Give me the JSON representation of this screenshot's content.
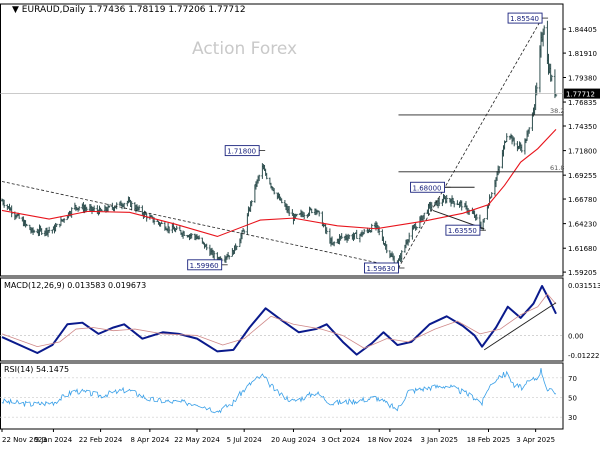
{
  "header": {
    "title": "EURAUD,Daily",
    "ohlc": "1.77436 1.78119 1.77206 1.77712"
  },
  "watermark": "Action Forex",
  "colors": {
    "bars": "#2f4f4f",
    "ma": "#e8141c",
    "macd_line": "#0a1a8c",
    "macd_signal": "#d08a8a",
    "rsi": "#3aa0e8",
    "label_border": "#1a237e",
    "current_price_bg": "#000000"
  },
  "chart_data": [
    {
      "type": "ohlc",
      "panel": "price",
      "title": "EURAUD,Daily",
      "ylim": [
        1.588,
        1.87
      ],
      "y_ticks": [
        "1.84405",
        "1.81910",
        "1.79380",
        "1.76835",
        "1.74350",
        "1.71800",
        "1.69255",
        "1.66780",
        "1.64230",
        "1.61680",
        "1.59205"
      ],
      "x_ticks": [
        "22 Nov 2023",
        "9 Jan 2024",
        "22 Feb 2024",
        "8 Apr 2024",
        "22 May 2024",
        "5 Jul 2024",
        "20 Aug 2024",
        "3 Oct 2024",
        "18 Nov 2024",
        "3 Jan 2025",
        "18 Feb 2025",
        "3 Apr 2025"
      ],
      "x_range": [
        "2023-11-22",
        "2025-04-22"
      ],
      "anchors": [
        [
          "2023-11-22",
          1.666
        ],
        [
          "2023-12-20",
          1.634
        ],
        [
          "2024-01-09",
          1.636
        ],
        [
          "2024-01-29",
          1.66
        ],
        [
          "2024-02-22",
          1.655
        ],
        [
          "2024-03-18",
          1.665
        ],
        [
          "2024-04-08",
          1.648
        ],
        [
          "2024-04-25",
          1.638
        ],
        [
          "2024-05-22",
          1.628
        ],
        [
          "2024-06-10",
          1.605
        ],
        [
          "2024-06-24",
          1.612
        ],
        [
          "2024-07-05",
          1.636
        ],
        [
          "2024-07-15",
          1.68
        ],
        [
          "2024-07-22",
          1.7
        ],
        [
          "2024-08-05",
          1.67
        ],
        [
          "2024-08-20",
          1.648
        ],
        [
          "2024-09-10",
          1.658
        ],
        [
          "2024-09-25",
          1.62
        ],
        [
          "2024-10-03",
          1.628
        ],
        [
          "2024-10-20",
          1.63
        ],
        [
          "2024-11-05",
          1.64
        ],
        [
          "2024-11-18",
          1.61
        ],
        [
          "2024-11-25",
          1.6
        ],
        [
          "2024-12-05",
          1.628
        ],
        [
          "2024-12-25",
          1.66
        ],
        [
          "2025-01-10",
          1.668
        ],
        [
          "2025-01-24",
          1.662
        ],
        [
          "2025-02-05",
          1.65
        ],
        [
          "2025-02-12",
          1.638
        ],
        [
          "2025-02-18",
          1.665
        ],
        [
          "2025-02-28",
          1.7
        ],
        [
          "2025-03-08",
          1.74
        ],
        [
          "2025-03-14",
          1.725
        ],
        [
          "2025-03-22",
          1.72
        ],
        [
          "2025-03-28",
          1.74
        ],
        [
          "2025-04-04",
          1.78
        ],
        [
          "2025-04-08",
          1.83
        ],
        [
          "2025-04-11",
          1.85
        ],
        [
          "2025-04-14",
          1.81
        ],
        [
          "2025-04-18",
          1.79
        ],
        [
          "2025-04-22",
          1.777
        ]
      ],
      "moving_average": [
        [
          "2023-11-22",
          1.656
        ],
        [
          "2024-01-05",
          1.647
        ],
        [
          "2024-02-10",
          1.655
        ],
        [
          "2024-03-20",
          1.654
        ],
        [
          "2024-05-01",
          1.642
        ],
        [
          "2024-06-10",
          1.629
        ],
        [
          "2024-07-20",
          1.646
        ],
        [
          "2024-08-20",
          1.648
        ],
        [
          "2024-09-30",
          1.64
        ],
        [
          "2024-11-05",
          1.637
        ],
        [
          "2024-12-20",
          1.645
        ],
        [
          "2025-01-25",
          1.653
        ],
        [
          "2025-02-18",
          1.662
        ],
        [
          "2025-03-05",
          1.682
        ],
        [
          "2025-03-20",
          1.706
        ],
        [
          "2025-04-05",
          1.72
        ],
        [
          "2025-04-22",
          1.74
        ]
      ],
      "annotations": [
        {
          "label": "1.85540",
          "date": "2025-04-09",
          "price": 1.8554,
          "side": "left"
        },
        {
          "label": "1.71800",
          "date": "2024-07-19",
          "price": 1.718,
          "side": "left"
        },
        {
          "label": "1.68000",
          "date": "2025-01-08",
          "price": 1.68,
          "side": "left"
        },
        {
          "label": "1.63550",
          "date": "2025-02-10",
          "price": 1.6355,
          "side": "left"
        },
        {
          "label": "1.59960",
          "date": "2024-06-14",
          "price": 1.5996,
          "side": "left"
        },
        {
          "label": "1.59630",
          "date": "2024-11-26",
          "price": 1.5963,
          "side": "left"
        }
      ],
      "horizontal_levels": [
        {
          "price": 1.755,
          "from": "2024-11-26",
          "label": "38.2"
        },
        {
          "price": 1.696,
          "from": "2024-11-26",
          "label": "61.8"
        },
        {
          "price": 1.68,
          "from": "2024-12-20",
          "to": "2025-02-05",
          "label": ""
        }
      ],
      "trendlines": [
        {
          "from": [
            "2023-11-22",
            1.686
          ],
          "to": [
            "2024-11-26",
            1.597
          ],
          "style": "dashed"
        },
        {
          "from": [
            "2024-11-26",
            1.5963
          ],
          "to": [
            "2025-04-09",
            1.8554
          ],
          "style": "dashed"
        },
        {
          "from": [
            "2024-12-28",
            1.656
          ],
          "to": [
            "2025-02-14",
            1.637
          ],
          "style": "solid"
        }
      ],
      "current_price": 1.77712
    },
    {
      "type": "line",
      "panel": "macd",
      "title": "MACD(12,26,9) 0.013583 0.019673",
      "ylim": [
        -0.016,
        0.036
      ],
      "y_ticks": [
        {
          "label": "0.031513",
          "value": 0.031513
        },
        {
          "label": "0.00",
          "value": 0.0
        },
        {
          "label": "-0.012223",
          "value": -0.012223
        }
      ],
      "series": [
        {
          "name": "MACD",
          "points": [
            [
              "2023-11-22",
              -0.001
            ],
            [
              "2023-12-25",
              -0.011
            ],
            [
              "2024-01-08",
              -0.006
            ],
            [
              "2024-01-22",
              0.007
            ],
            [
              "2024-02-05",
              0.008
            ],
            [
              "2024-02-20",
              0.001
            ],
            [
              "2024-03-05",
              0.005
            ],
            [
              "2024-03-15",
              0.007
            ],
            [
              "2024-04-01",
              -0.002
            ],
            [
              "2024-04-20",
              0.002
            ],
            [
              "2024-05-05",
              0.001
            ],
            [
              "2024-05-22",
              -0.002
            ],
            [
              "2024-06-10",
              -0.01
            ],
            [
              "2024-06-25",
              -0.009
            ],
            [
              "2024-07-10",
              0.005
            ],
            [
              "2024-07-25",
              0.017
            ],
            [
              "2024-08-10",
              0.009
            ],
            [
              "2024-08-25",
              0.002
            ],
            [
              "2024-09-10",
              0.004
            ],
            [
              "2024-09-20",
              0.007
            ],
            [
              "2024-10-05",
              -0.004
            ],
            [
              "2024-10-18",
              -0.012
            ],
            [
              "2024-11-01",
              -0.005
            ],
            [
              "2024-11-12",
              0.002
            ],
            [
              "2024-11-25",
              -0.006
            ],
            [
              "2024-12-08",
              -0.004
            ],
            [
              "2024-12-25",
              0.007
            ],
            [
              "2025-01-10",
              0.012
            ],
            [
              "2025-01-25",
              0.006
            ],
            [
              "2025-02-05",
              0.0
            ],
            [
              "2025-02-12",
              -0.007
            ],
            [
              "2025-02-25",
              0.005
            ],
            [
              "2025-03-08",
              0.018
            ],
            [
              "2025-03-20",
              0.011
            ],
            [
              "2025-04-01",
              0.02
            ],
            [
              "2025-04-09",
              0.031
            ],
            [
              "2025-04-16",
              0.022
            ],
            [
              "2025-04-22",
              0.0136
            ]
          ]
        },
        {
          "name": "Signal",
          "points": [
            [
              "2023-11-22",
              0.001
            ],
            [
              "2023-12-25",
              -0.007
            ],
            [
              "2024-01-15",
              -0.004
            ],
            [
              "2024-01-30",
              0.004
            ],
            [
              "2024-02-15",
              0.005
            ],
            [
              "2024-03-05",
              0.003
            ],
            [
              "2024-03-25",
              0.004
            ],
            [
              "2024-04-20",
              0.001
            ],
            [
              "2024-05-22",
              0.0
            ],
            [
              "2024-06-15",
              -0.006
            ],
            [
              "2024-07-05",
              -0.002
            ],
            [
              "2024-07-30",
              0.012
            ],
            [
              "2024-08-20",
              0.007
            ],
            [
              "2024-09-15",
              0.004
            ],
            [
              "2024-10-05",
              0.0
            ],
            [
              "2024-10-25",
              -0.008
            ],
            [
              "2024-11-15",
              -0.002
            ],
            [
              "2024-12-05",
              -0.004
            ],
            [
              "2024-12-30",
              0.004
            ],
            [
              "2025-01-20",
              0.009
            ],
            [
              "2025-02-10",
              0.001
            ],
            [
              "2025-03-01",
              0.004
            ],
            [
              "2025-03-20",
              0.013
            ],
            [
              "2025-04-05",
              0.018
            ],
            [
              "2025-04-14",
              0.026
            ],
            [
              "2025-04-22",
              0.0197
            ]
          ]
        }
      ],
      "trendlines": [
        {
          "from": [
            "2025-02-14",
            -0.009
          ],
          "to": [
            "2025-04-22",
            0.0205
          ],
          "style": "solid"
        }
      ]
    },
    {
      "type": "line",
      "panel": "rsi",
      "title": "RSI(14) 54.1475",
      "ylim": [
        18,
        85
      ],
      "y_ticks": [
        {
          "label": "70",
          "value": 70
        },
        {
          "label": "50",
          "value": 50
        },
        {
          "label": "30",
          "value": 30
        }
      ],
      "series": [
        {
          "name": "RSI",
          "points": [
            [
              "2023-11-22",
              46
            ],
            [
              "2023-12-20",
              43
            ],
            [
              "2024-01-09",
              45
            ],
            [
              "2024-01-29",
              57
            ],
            [
              "2024-02-22",
              52
            ],
            [
              "2024-03-18",
              58
            ],
            [
              "2024-04-08",
              48
            ],
            [
              "2024-04-25",
              46
            ],
            [
              "2024-05-22",
              44
            ],
            [
              "2024-06-10",
              36
            ],
            [
              "2024-06-24",
              44
            ],
            [
              "2024-07-05",
              58
            ],
            [
              "2024-07-15",
              68
            ],
            [
              "2024-07-22",
              72
            ],
            [
              "2024-08-05",
              55
            ],
            [
              "2024-08-20",
              46
            ],
            [
              "2024-09-10",
              55
            ],
            [
              "2024-09-25",
              44
            ],
            [
              "2024-10-03",
              45
            ],
            [
              "2024-10-20",
              47
            ],
            [
              "2024-11-05",
              50
            ],
            [
              "2024-11-18",
              42
            ],
            [
              "2024-11-25",
              38
            ],
            [
              "2024-12-05",
              56
            ],
            [
              "2024-12-25",
              60
            ],
            [
              "2025-01-10",
              62
            ],
            [
              "2025-01-24",
              56
            ],
            [
              "2025-02-05",
              50
            ],
            [
              "2025-02-12",
              44
            ],
            [
              "2025-02-18",
              60
            ],
            [
              "2025-02-28",
              72
            ],
            [
              "2025-03-08",
              74
            ],
            [
              "2025-03-14",
              62
            ],
            [
              "2025-03-22",
              60
            ],
            [
              "2025-03-28",
              66
            ],
            [
              "2025-04-04",
              70
            ],
            [
              "2025-04-08",
              78
            ],
            [
              "2025-04-11",
              68
            ],
            [
              "2025-04-14",
              58
            ],
            [
              "2025-04-18",
              56
            ],
            [
              "2025-04-22",
              54
            ]
          ]
        }
      ]
    }
  ]
}
